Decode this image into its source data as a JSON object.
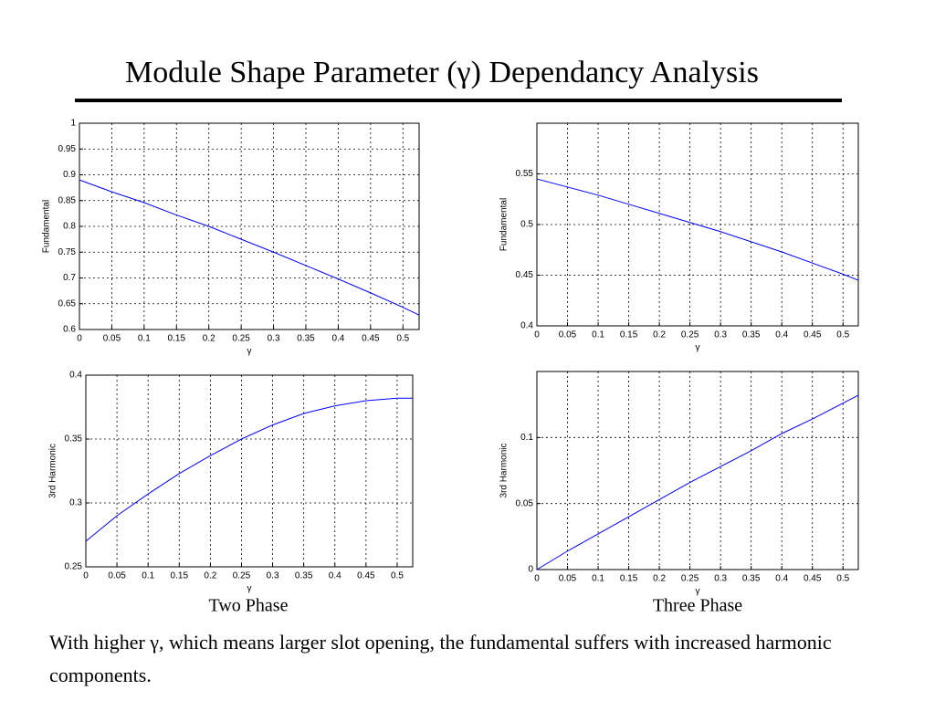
{
  "title": "Module Shape Parameter (γ) Dependancy Analysis",
  "captions": [
    "Two Phase",
    "Three Phase"
  ],
  "note": "With higher γ, which means larger slot opening, the fundamental suffers with increased harmonic components.",
  "chart_data": [
    {
      "type": "line",
      "xlabel": "γ",
      "ylabel": "Fundamental",
      "color": "#0000ff",
      "grid": true,
      "x": [
        0,
        0.05,
        0.1,
        0.15,
        0.2,
        0.25,
        0.3,
        0.35,
        0.4,
        0.45,
        0.5,
        0.525
      ],
      "values": [
        0.89,
        0.867,
        0.846,
        0.822,
        0.8,
        0.775,
        0.75,
        0.724,
        0.698,
        0.671,
        0.643,
        0.628
      ],
      "xlim": [
        0,
        0.525
      ],
      "xticks": [
        0,
        0.05,
        0.1,
        0.15,
        0.2,
        0.25,
        0.3,
        0.35,
        0.4,
        0.45,
        0.5
      ],
      "ylim": [
        0.6,
        1
      ],
      "yticks": [
        0.6,
        0.65,
        0.7,
        0.75,
        0.8,
        0.85,
        0.9,
        0.95,
        1
      ]
    },
    {
      "type": "line",
      "xlabel": "γ",
      "ylabel": "Fundamental",
      "color": "#0000ff",
      "grid": true,
      "x": [
        0,
        0.05,
        0.1,
        0.15,
        0.2,
        0.25,
        0.3,
        0.35,
        0.4,
        0.45,
        0.5,
        0.525
      ],
      "values": [
        0.545,
        0.537,
        0.529,
        0.52,
        0.511,
        0.502,
        0.493,
        0.483,
        0.473,
        0.462,
        0.451,
        0.445
      ],
      "xlim": [
        0,
        0.525
      ],
      "xticks": [
        0,
        0.05,
        0.1,
        0.15,
        0.2,
        0.25,
        0.3,
        0.35,
        0.4,
        0.45,
        0.5
      ],
      "ylim": [
        0.4,
        0.6
      ],
      "yticks": [
        0.4,
        0.45,
        0.5,
        0.55
      ]
    },
    {
      "type": "line",
      "xlabel": "γ",
      "ylabel": "3rd Harmonic",
      "color": "#0000ff",
      "grid": true,
      "x": [
        0,
        0.05,
        0.1,
        0.15,
        0.2,
        0.25,
        0.3,
        0.35,
        0.4,
        0.45,
        0.5,
        0.525
      ],
      "values": [
        0.27,
        0.29,
        0.307,
        0.323,
        0.337,
        0.35,
        0.361,
        0.37,
        0.376,
        0.38,
        0.382,
        0.382
      ],
      "xlim": [
        0,
        0.525
      ],
      "xticks": [
        0,
        0.05,
        0.1,
        0.15,
        0.2,
        0.25,
        0.3,
        0.35,
        0.4,
        0.45,
        0.5
      ],
      "ylim": [
        0.25,
        0.4
      ],
      "yticks": [
        0.25,
        0.3,
        0.35,
        0.4
      ]
    },
    {
      "type": "line",
      "xlabel": "γ",
      "ylabel": "3rd Harmonic",
      "color": "#0000ff",
      "grid": true,
      "x": [
        0,
        0.05,
        0.1,
        0.15,
        0.2,
        0.25,
        0.3,
        0.35,
        0.4,
        0.45,
        0.5,
        0.525
      ],
      "values": [
        0,
        0.014,
        0.027,
        0.04,
        0.053,
        0.066,
        0.078,
        0.09,
        0.103,
        0.114,
        0.126,
        0.132
      ],
      "xlim": [
        0,
        0.525
      ],
      "xticks": [
        0,
        0.05,
        0.1,
        0.15,
        0.2,
        0.25,
        0.3,
        0.35,
        0.4,
        0.45,
        0.5
      ],
      "ylim": [
        0,
        0.15
      ],
      "yticks": [
        0,
        0.05,
        0.1
      ]
    }
  ]
}
